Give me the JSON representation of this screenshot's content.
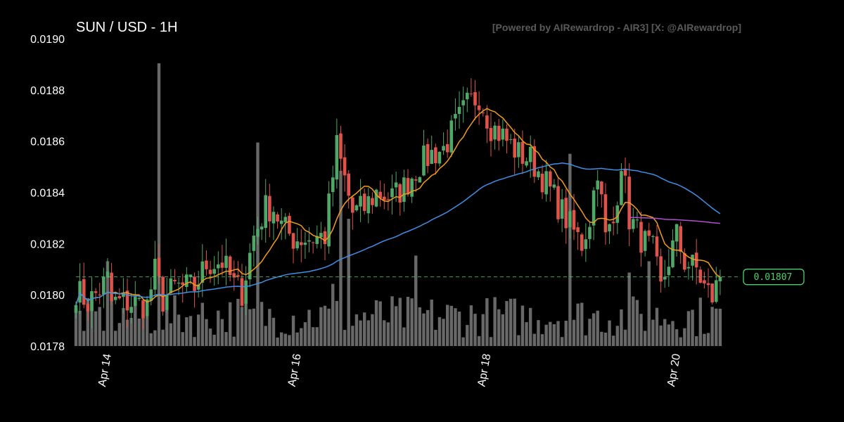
{
  "colors": {
    "background": "#000000",
    "up": "#4fa867",
    "down": "#e0534a",
    "volume": "#7a7a7a",
    "ma_fast": "#f39c1b",
    "ma_slow": "#3f8fe6",
    "ma_purple": "#b04fd0",
    "last_price": "#4fd06b",
    "text": "#ffffff",
    "credit": "#5a5a5a"
  },
  "chart_data": {
    "type": "candlestick",
    "title": "SUN / USD - 1H",
    "credit": "[Powered by AIRewardrop - AIR3] [X: @AIRewardrop]",
    "ylim": [
      0.0178,
      0.019
    ],
    "yticks": [
      "0.0178",
      "0.0180",
      "0.0182",
      "0.0184",
      "0.0186",
      "0.0188",
      "0.0190"
    ],
    "x_range_hours": [
      0,
      168
    ],
    "xticks": [
      {
        "label": "Apr 14",
        "hour": 8
      },
      {
        "label": "Apr 16",
        "hour": 56
      },
      {
        "label": "Apr 18",
        "hour": 104
      },
      {
        "label": "Apr 20",
        "hour": 152
      }
    ],
    "last_price": 0.01807,
    "last_price_label": "0.01807",
    "anchors": [
      [
        0,
        0.01802
      ],
      [
        3,
        0.01797
      ],
      [
        6,
        0.01802
      ],
      [
        8,
        0.01806
      ],
      [
        9,
        0.01797
      ],
      [
        13,
        0.01797
      ],
      [
        18,
        0.01796
      ],
      [
        20,
        0.01809
      ],
      [
        22,
        0.01798
      ],
      [
        25,
        0.01803
      ],
      [
        30,
        0.01803
      ],
      [
        33,
        0.01812
      ],
      [
        37,
        0.01813
      ],
      [
        40,
        0.01804
      ],
      [
        42,
        0.01801
      ],
      [
        45,
        0.01823
      ],
      [
        48,
        0.01834
      ],
      [
        50,
        0.01834
      ],
      [
        52,
        0.01827
      ],
      [
        55,
        0.01822
      ],
      [
        58,
        0.01822
      ],
      [
        63,
        0.01823
      ],
      [
        66,
        0.01858
      ],
      [
        70,
        0.01832
      ],
      [
        73,
        0.01834
      ],
      [
        76,
        0.0184
      ],
      [
        80,
        0.01838
      ],
      [
        83,
        0.01842
      ],
      [
        87,
        0.01851
      ],
      [
        90,
        0.01855
      ],
      [
        93,
        0.01857
      ],
      [
        96,
        0.01866
      ],
      [
        99,
        0.01874
      ],
      [
        102,
        0.01878
      ],
      [
        105,
        0.01866
      ],
      [
        108,
        0.01862
      ],
      [
        112,
        0.01855
      ],
      [
        115,
        0.01853
      ],
      [
        118,
        0.01846
      ],
      [
        121,
        0.01838
      ],
      [
        125,
        0.01827
      ],
      [
        128,
        0.0182
      ],
      [
        130,
        0.0183
      ],
      [
        132,
        0.0185
      ],
      [
        134,
        0.01822
      ],
      [
        136,
        0.01828
      ],
      [
        138,
        0.01853
      ],
      [
        140,
        0.0183
      ],
      [
        143,
        0.01822
      ],
      [
        146,
        0.01817
      ],
      [
        148,
        0.01802
      ],
      [
        150,
        0.01814
      ],
      [
        152,
        0.01823
      ],
      [
        154,
        0.01813
      ],
      [
        157,
        0.0181
      ],
      [
        159,
        0.01803
      ],
      [
        161,
        0.01799
      ],
      [
        163,
        0.01807
      ]
    ],
    "volume_spikes": [
      {
        "hour": 21,
        "value": 1.0
      },
      {
        "hour": 46,
        "value": 0.72
      },
      {
        "hour": 125,
        "value": 0.68
      },
      {
        "hour": 67,
        "value": 0.62
      },
      {
        "hour": 69,
        "value": 0.45
      },
      {
        "hour": 86,
        "value": 0.32
      },
      {
        "hour": 8,
        "value": 0.3
      },
      {
        "hour": 145,
        "value": 0.3
      },
      {
        "hour": 140,
        "value": 0.26
      },
      {
        "hour": 65,
        "value": 0.22
      }
    ]
  }
}
